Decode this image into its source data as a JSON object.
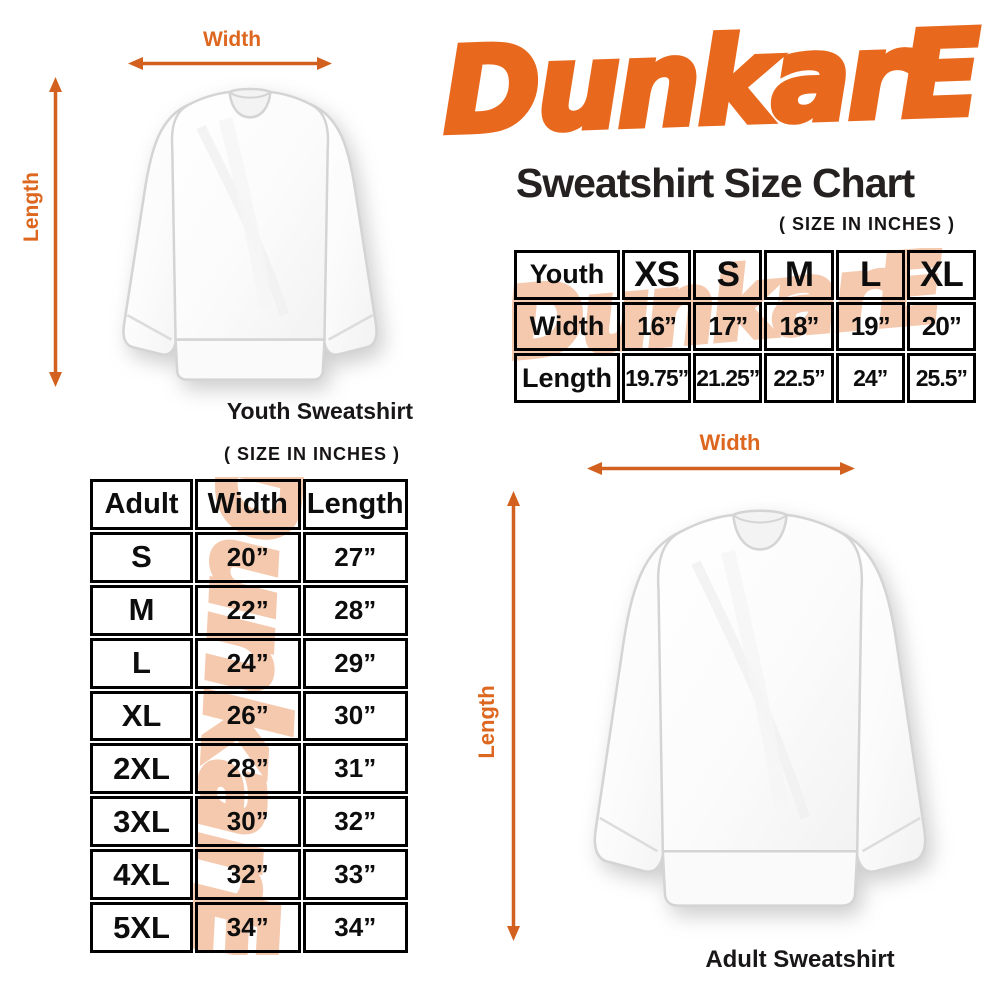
{
  "brand": {
    "logo_text": "DunkarE"
  },
  "header": {
    "title": "Sweatshirt Size Chart",
    "units_note": "( SIZE IN INCHES )"
  },
  "youth_figure": {
    "width_label": "Width",
    "length_label": "Length",
    "caption": "Youth Sweatshirt"
  },
  "adult_section": {
    "units_note": "( SIZE IN INCHES )"
  },
  "adult_figure": {
    "width_label": "Width",
    "length_label": "Length",
    "caption": "Adult Sweatshirt"
  },
  "colors": {
    "logo_orange": "#E8691E",
    "arrow_orange": "#D2601E",
    "label_orange": "#DD671F",
    "watermark_peach": "#F5C9AE",
    "table_line": "#000000",
    "text_dark": "#1C1A19"
  },
  "chart_data": [
    {
      "type": "table",
      "columns": [
        "Youth",
        "XS",
        "S",
        "M",
        "L",
        "XL"
      ],
      "rows": [
        [
          "Width",
          "16”",
          "17”",
          "18”",
          "19”",
          "20”"
        ],
        [
          "Length",
          "19.75”",
          "21.25”",
          "22.5”",
          "24”",
          "25.5”"
        ]
      ]
    },
    {
      "type": "table",
      "columns": [
        "Adult",
        "Width",
        "Length"
      ],
      "rows": [
        [
          "S",
          "20”",
          "27”"
        ],
        [
          "M",
          "22”",
          "28”"
        ],
        [
          "L",
          "24”",
          "29”"
        ],
        [
          "XL",
          "26”",
          "30”"
        ],
        [
          "2XL",
          "28”",
          "31”"
        ],
        [
          "3XL",
          "30”",
          "32”"
        ],
        [
          "4XL",
          "32”",
          "33”"
        ],
        [
          "5XL",
          "34”",
          "34”"
        ]
      ]
    }
  ]
}
